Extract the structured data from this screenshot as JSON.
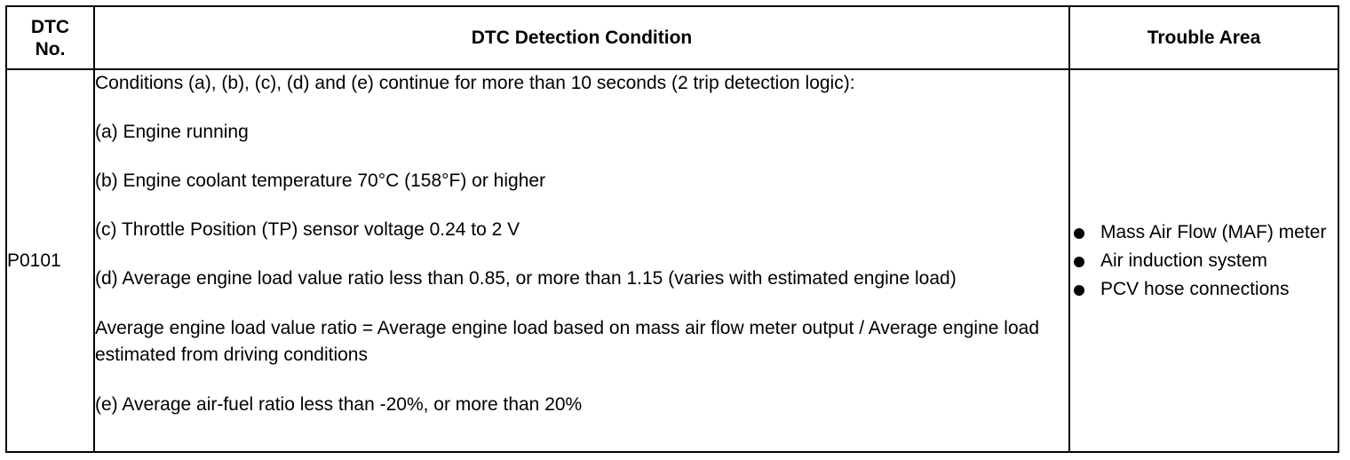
{
  "headers": {
    "dtc_no": "DTC No.",
    "condition": "DTC Detection Condition",
    "trouble_area": "Trouble Area"
  },
  "row": {
    "code": "P0101",
    "conditions": [
      "Conditions (a), (b), (c), (d) and (e) continue for more than 10 seconds (2 trip detection logic):",
      "(a) Engine running",
      "(b) Engine coolant temperature 70°C (158°F) or higher",
      "(c) Throttle Position (TP) sensor voltage 0.24 to 2 V",
      "(d) Average engine load value ratio less than 0.85, or more than 1.15 (varies with estimated engine load)",
      "Average engine load value ratio = Average engine load based on mass air flow meter output / Average engine load estimated from driving conditions",
      "(e) Average air-fuel ratio less than -20%, or more than 20%"
    ],
    "trouble_areas": [
      "Mass Air Flow (MAF) meter",
      "Air induction system",
      "PCV hose connections"
    ]
  }
}
